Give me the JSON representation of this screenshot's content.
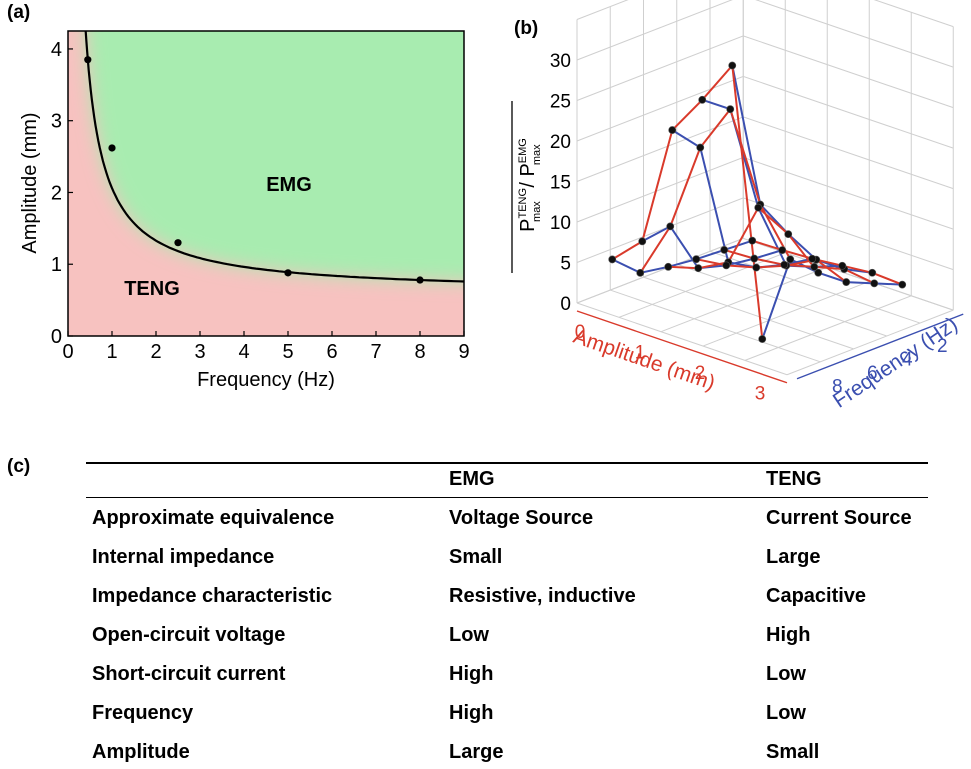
{
  "panels": {
    "a": "(a)",
    "b": "(b)",
    "c": "(c)"
  },
  "chart_a": {
    "type": "line",
    "xlabel": "Frequency (Hz)",
    "ylabel": "Amplitude (mm)",
    "xlim": [
      0,
      9
    ],
    "ylim": [
      0,
      4.25
    ],
    "xticks": [
      "0",
      "1",
      "2",
      "3",
      "4",
      "5",
      "6",
      "7",
      "8",
      "9"
    ],
    "yticks": [
      "0",
      "1",
      "2",
      "3",
      "4"
    ],
    "region_labels": {
      "upper": "EMG",
      "lower": "TENG"
    },
    "colors": {
      "emg": "#a8ecb0",
      "teng": "#f7c2c0",
      "curve": "#000000"
    },
    "points": [
      {
        "x": 0.45,
        "y": 3.85
      },
      {
        "x": 1.0,
        "y": 2.62
      },
      {
        "x": 2.5,
        "y": 1.3
      },
      {
        "x": 5.0,
        "y": 0.88
      },
      {
        "x": 8.0,
        "y": 0.78
      }
    ]
  },
  "chart_b": {
    "type": "surface",
    "zlabel_num": "P",
    "zlabel_num_sup": "TENG",
    "zlabel_num_sub": "max",
    "zlabel_sep": " / ",
    "zlabel_den": "P",
    "zlabel_den_sup": "EMG",
    "zlabel_den_sub": "max",
    "xlabel": "Amplitude (mm)",
    "ylabel": "Frequency (Hz)",
    "zticks": [
      "0",
      "5",
      "10",
      "15",
      "20",
      "25",
      "30"
    ],
    "amp_ticks": [
      "0",
      "1",
      "2",
      "3"
    ],
    "freq_ticks": [
      "0",
      "2",
      "4",
      "6",
      "8"
    ],
    "amplitude_mm": [
      0.5,
      1.0,
      1.5,
      2.0,
      2.5,
      3.0
    ],
    "frequency_hz": [
      0,
      1.6,
      3.2,
      4.8,
      6.4,
      8.0
    ],
    "ratio_values": [
      [
        4.5,
        8.0,
        23.0,
        28.0,
        33.5,
        1.0
      ],
      [
        1.5,
        8.5,
        19.5,
        25.5,
        15.0,
        9.5
      ],
      [
        0.9,
        2.0,
        4.0,
        12.0,
        10.0,
        6.5
      ],
      [
        0.5,
        1.0,
        2.0,
        3.5,
        5.5,
        4.0
      ],
      [
        0.3,
        0.5,
        1.0,
        2.0,
        3.0,
        2.5
      ],
      [
        0.1,
        0.2,
        0.4,
        0.8,
        1.2,
        1.0
      ]
    ],
    "colors": {
      "amplitude_lines": "#d93a2b",
      "frequency_lines": "#3b4fb0"
    }
  },
  "table": {
    "headers": [
      "",
      "EMG",
      "TENG"
    ],
    "rows": [
      [
        "Approximate equivalence",
        "Voltage Source",
        "Current Source"
      ],
      [
        "Internal impedance",
        "Small",
        "Large"
      ],
      [
        "Impedance characteristic",
        "Resistive, inductive",
        "Capacitive"
      ],
      [
        "Open-circuit voltage",
        "Low",
        "High"
      ],
      [
        "Short-circuit current",
        "High",
        "Low"
      ],
      [
        "Frequency",
        "High",
        "Low"
      ],
      [
        "Amplitude",
        "Large",
        "Small"
      ]
    ]
  }
}
